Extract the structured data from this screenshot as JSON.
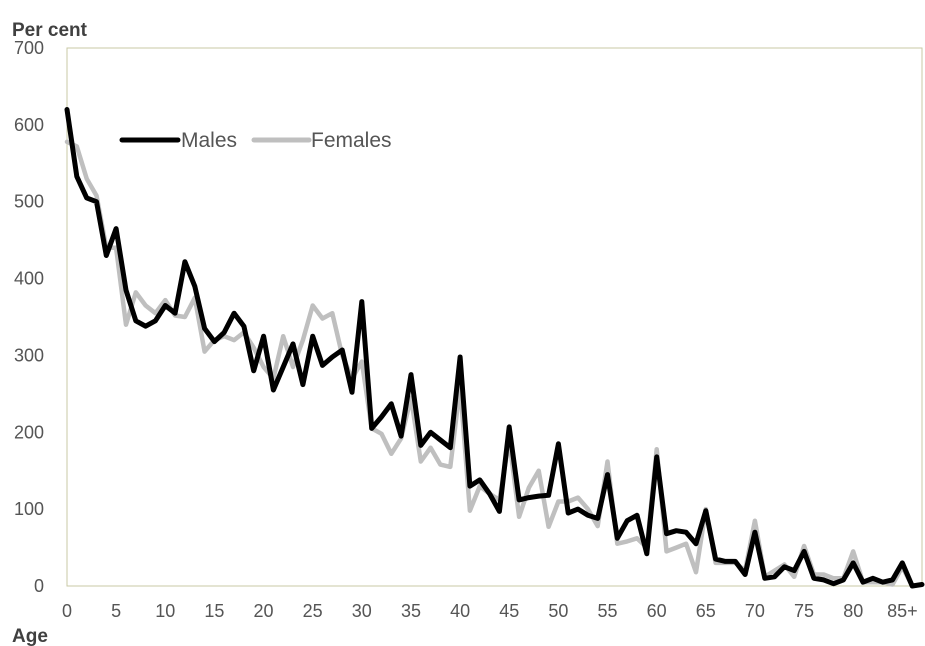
{
  "chart_data": {
    "type": "line",
    "title": "",
    "ylabel": "Per cent",
    "xlabel": "Age",
    "ylim": [
      0,
      700
    ],
    "yticks": [
      0,
      100,
      200,
      300,
      400,
      500,
      600,
      700
    ],
    "xlim": [
      0,
      87
    ],
    "xticks": [
      {
        "value": 0,
        "label": "0"
      },
      {
        "value": 5,
        "label": "5"
      },
      {
        "value": 10,
        "label": "10"
      },
      {
        "value": 15,
        "label": "15"
      },
      {
        "value": 20,
        "label": "20"
      },
      {
        "value": 25,
        "label": "25"
      },
      {
        "value": 30,
        "label": "30"
      },
      {
        "value": 35,
        "label": "35"
      },
      {
        "value": 40,
        "label": "40"
      },
      {
        "value": 45,
        "label": "45"
      },
      {
        "value": 50,
        "label": "50"
      },
      {
        "value": 55,
        "label": "55"
      },
      {
        "value": 60,
        "label": "60"
      },
      {
        "value": 65,
        "label": "65"
      },
      {
        "value": 70,
        "label": "70"
      },
      {
        "value": 75,
        "label": "75"
      },
      {
        "value": 80,
        "label": "80"
      },
      {
        "value": 85,
        "label": "85+"
      }
    ],
    "legend_position": "top-left",
    "grid": false,
    "x": [
      0,
      1,
      2,
      3,
      4,
      5,
      6,
      7,
      8,
      9,
      10,
      11,
      12,
      13,
      14,
      15,
      16,
      17,
      18,
      19,
      20,
      21,
      22,
      23,
      24,
      25,
      26,
      27,
      28,
      29,
      30,
      31,
      32,
      33,
      34,
      35,
      36,
      37,
      38,
      39,
      40,
      41,
      42,
      43,
      44,
      45,
      46,
      47,
      48,
      49,
      50,
      51,
      52,
      53,
      54,
      55,
      56,
      57,
      58,
      59,
      60,
      61,
      62,
      63,
      64,
      65,
      66,
      67,
      68,
      69,
      70,
      71,
      72,
      73,
      74,
      75,
      76,
      77,
      78,
      79,
      80,
      81,
      82,
      83,
      84,
      85,
      86,
      87
    ],
    "series": [
      {
        "name": "Males",
        "color": "#000000",
        "values": [
          620,
          533,
          505,
          500,
          430,
          465,
          385,
          345,
          338,
          345,
          365,
          355,
          422,
          390,
          335,
          318,
          330,
          355,
          338,
          280,
          325,
          255,
          285,
          315,
          262,
          325,
          287,
          298,
          307,
          252,
          370,
          205,
          220,
          237,
          195,
          275,
          183,
          200,
          190,
          180,
          298,
          130,
          138,
          120,
          97,
          207,
          112,
          115,
          117,
          118,
          185,
          95,
          100,
          92,
          88,
          145,
          62,
          85,
          92,
          42,
          168,
          68,
          72,
          70,
          55,
          98,
          35,
          32,
          32,
          15,
          70,
          10,
          12,
          25,
          20,
          45,
          10,
          8,
          3,
          8,
          30,
          5,
          10,
          5,
          8,
          30,
          0,
          2
        ]
      },
      {
        "name": "Females",
        "color": "#bfbfbf",
        "values": [
          578,
          572,
          530,
          508,
          440,
          440,
          340,
          382,
          365,
          355,
          372,
          352,
          350,
          375,
          305,
          320,
          325,
          320,
          330,
          310,
          285,
          270,
          325,
          285,
          320,
          365,
          348,
          355,
          300,
          270,
          292,
          205,
          198,
          172,
          192,
          245,
          162,
          180,
          158,
          155,
          260,
          98,
          130,
          120,
          112,
          190,
          90,
          128,
          150,
          77,
          110,
          110,
          115,
          100,
          78,
          162,
          55,
          58,
          62,
          50,
          178,
          45,
          50,
          55,
          18,
          100,
          30,
          30,
          30,
          20,
          85,
          12,
          20,
          28,
          12,
          52,
          15,
          15,
          10,
          10,
          45,
          5,
          5,
          5,
          2,
          25,
          0,
          2
        ]
      }
    ]
  }
}
